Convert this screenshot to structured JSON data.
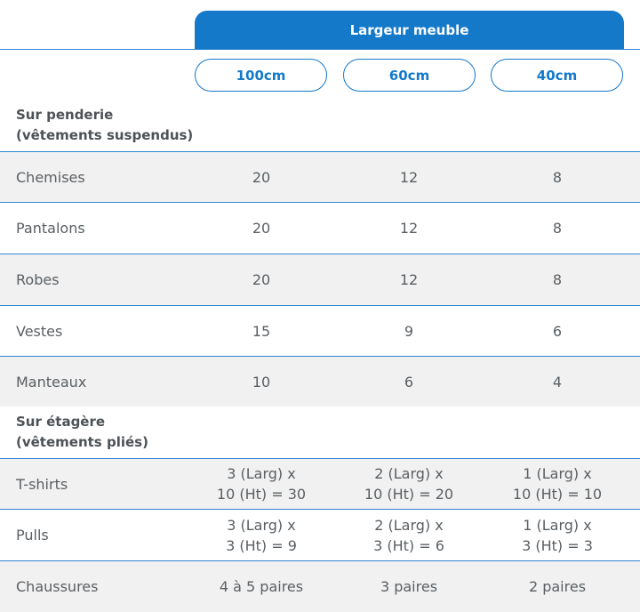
{
  "header": {
    "title": "Largeur meuble"
  },
  "columns": [
    "100cm",
    "60cm",
    "40cm"
  ],
  "sections": [
    {
      "title_line1": "Sur penderie",
      "title_line2": "(vêtements suspendus)",
      "rows": [
        {
          "label": "Chemises",
          "values": [
            "20",
            "12",
            "8"
          ]
        },
        {
          "label": "Pantalons",
          "values": [
            "20",
            "12",
            "8"
          ]
        },
        {
          "label": "Robes",
          "values": [
            "20",
            "12",
            "8"
          ]
        },
        {
          "label": "Vestes",
          "values": [
            "15",
            "9",
            "6"
          ]
        },
        {
          "label": "Manteaux",
          "values": [
            "10",
            "6",
            "4"
          ]
        }
      ]
    },
    {
      "title_line1": "Sur étagère",
      "title_line2": "(vêtements pliés)",
      "rows": [
        {
          "label": "T-shirts",
          "values": [
            [
              "3 (Larg) x",
              "10 (Ht) = 30"
            ],
            [
              "2 (Larg) x",
              "10 (Ht) = 20"
            ],
            [
              "1 (Larg) x",
              "10 (Ht) = 10"
            ]
          ]
        },
        {
          "label": "Pulls",
          "values": [
            [
              "3 (Larg) x",
              "3 (Ht) = 9"
            ],
            [
              "2 (Larg) x",
              "3 (Ht) = 6"
            ],
            [
              "1 (Larg) x",
              "3 (Ht) = 3"
            ]
          ]
        },
        {
          "label": "Chaussures",
          "values": [
            "4 à 5 paires",
            "3 paires",
            "2 paires"
          ]
        }
      ]
    }
  ]
}
